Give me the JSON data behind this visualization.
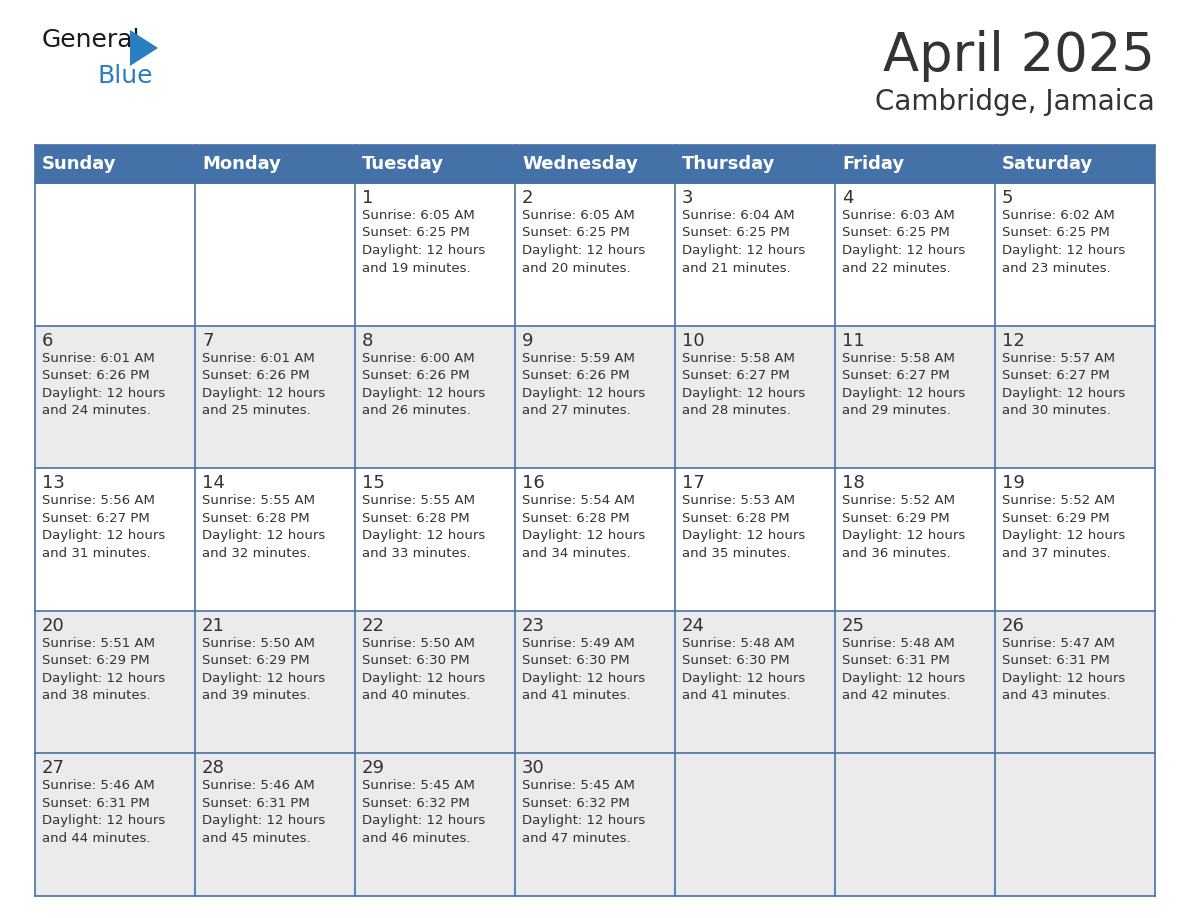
{
  "title": "April 2025",
  "subtitle": "Cambridge, Jamaica",
  "days_of_week": [
    "Sunday",
    "Monday",
    "Tuesday",
    "Wednesday",
    "Thursday",
    "Friday",
    "Saturday"
  ],
  "header_bg": "#4472A8",
  "header_text_color": "#FFFFFF",
  "row_bg_white": "#FFFFFF",
  "row_bg_gray": "#EBEBEB",
  "border_color": "#4472A8",
  "text_color": "#333333",
  "calendar_data": [
    [
      {
        "day": null,
        "text": ""
      },
      {
        "day": null,
        "text": ""
      },
      {
        "day": 1,
        "text": "Sunrise: 6:05 AM\nSunset: 6:25 PM\nDaylight: 12 hours\nand 19 minutes."
      },
      {
        "day": 2,
        "text": "Sunrise: 6:05 AM\nSunset: 6:25 PM\nDaylight: 12 hours\nand 20 minutes."
      },
      {
        "day": 3,
        "text": "Sunrise: 6:04 AM\nSunset: 6:25 PM\nDaylight: 12 hours\nand 21 minutes."
      },
      {
        "day": 4,
        "text": "Sunrise: 6:03 AM\nSunset: 6:25 PM\nDaylight: 12 hours\nand 22 minutes."
      },
      {
        "day": 5,
        "text": "Sunrise: 6:02 AM\nSunset: 6:25 PM\nDaylight: 12 hours\nand 23 minutes."
      }
    ],
    [
      {
        "day": 6,
        "text": "Sunrise: 6:01 AM\nSunset: 6:26 PM\nDaylight: 12 hours\nand 24 minutes."
      },
      {
        "day": 7,
        "text": "Sunrise: 6:01 AM\nSunset: 6:26 PM\nDaylight: 12 hours\nand 25 minutes."
      },
      {
        "day": 8,
        "text": "Sunrise: 6:00 AM\nSunset: 6:26 PM\nDaylight: 12 hours\nand 26 minutes."
      },
      {
        "day": 9,
        "text": "Sunrise: 5:59 AM\nSunset: 6:26 PM\nDaylight: 12 hours\nand 27 minutes."
      },
      {
        "day": 10,
        "text": "Sunrise: 5:58 AM\nSunset: 6:27 PM\nDaylight: 12 hours\nand 28 minutes."
      },
      {
        "day": 11,
        "text": "Sunrise: 5:58 AM\nSunset: 6:27 PM\nDaylight: 12 hours\nand 29 minutes."
      },
      {
        "day": 12,
        "text": "Sunrise: 5:57 AM\nSunset: 6:27 PM\nDaylight: 12 hours\nand 30 minutes."
      }
    ],
    [
      {
        "day": 13,
        "text": "Sunrise: 5:56 AM\nSunset: 6:27 PM\nDaylight: 12 hours\nand 31 minutes."
      },
      {
        "day": 14,
        "text": "Sunrise: 5:55 AM\nSunset: 6:28 PM\nDaylight: 12 hours\nand 32 minutes."
      },
      {
        "day": 15,
        "text": "Sunrise: 5:55 AM\nSunset: 6:28 PM\nDaylight: 12 hours\nand 33 minutes."
      },
      {
        "day": 16,
        "text": "Sunrise: 5:54 AM\nSunset: 6:28 PM\nDaylight: 12 hours\nand 34 minutes."
      },
      {
        "day": 17,
        "text": "Sunrise: 5:53 AM\nSunset: 6:28 PM\nDaylight: 12 hours\nand 35 minutes."
      },
      {
        "day": 18,
        "text": "Sunrise: 5:52 AM\nSunset: 6:29 PM\nDaylight: 12 hours\nand 36 minutes."
      },
      {
        "day": 19,
        "text": "Sunrise: 5:52 AM\nSunset: 6:29 PM\nDaylight: 12 hours\nand 37 minutes."
      }
    ],
    [
      {
        "day": 20,
        "text": "Sunrise: 5:51 AM\nSunset: 6:29 PM\nDaylight: 12 hours\nand 38 minutes."
      },
      {
        "day": 21,
        "text": "Sunrise: 5:50 AM\nSunset: 6:29 PM\nDaylight: 12 hours\nand 39 minutes."
      },
      {
        "day": 22,
        "text": "Sunrise: 5:50 AM\nSunset: 6:30 PM\nDaylight: 12 hours\nand 40 minutes."
      },
      {
        "day": 23,
        "text": "Sunrise: 5:49 AM\nSunset: 6:30 PM\nDaylight: 12 hours\nand 41 minutes."
      },
      {
        "day": 24,
        "text": "Sunrise: 5:48 AM\nSunset: 6:30 PM\nDaylight: 12 hours\nand 41 minutes."
      },
      {
        "day": 25,
        "text": "Sunrise: 5:48 AM\nSunset: 6:31 PM\nDaylight: 12 hours\nand 42 minutes."
      },
      {
        "day": 26,
        "text": "Sunrise: 5:47 AM\nSunset: 6:31 PM\nDaylight: 12 hours\nand 43 minutes."
      }
    ],
    [
      {
        "day": 27,
        "text": "Sunrise: 5:46 AM\nSunset: 6:31 PM\nDaylight: 12 hours\nand 44 minutes."
      },
      {
        "day": 28,
        "text": "Sunrise: 5:46 AM\nSunset: 6:31 PM\nDaylight: 12 hours\nand 45 minutes."
      },
      {
        "day": 29,
        "text": "Sunrise: 5:45 AM\nSunset: 6:32 PM\nDaylight: 12 hours\nand 46 minutes."
      },
      {
        "day": 30,
        "text": "Sunrise: 5:45 AM\nSunset: 6:32 PM\nDaylight: 12 hours\nand 47 minutes."
      },
      {
        "day": null,
        "text": ""
      },
      {
        "day": null,
        "text": ""
      },
      {
        "day": null,
        "text": ""
      }
    ]
  ],
  "logo_color_general": "#1a1a1a",
  "logo_color_blue": "#2B7EC1",
  "logo_triangle_color": "#2B7EC1",
  "title_fontsize": 38,
  "subtitle_fontsize": 20,
  "header_fontsize": 13,
  "day_num_fontsize": 13,
  "cell_text_fontsize": 9.5
}
